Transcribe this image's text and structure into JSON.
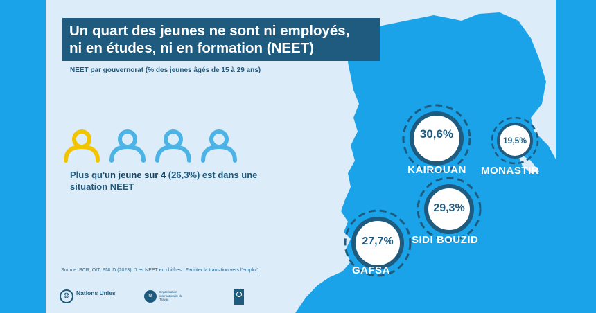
{
  "title": {
    "line1": "Un quart des jeunes ne sont ni employés,",
    "line2": "ni en études, ni en formation (NEET)"
  },
  "subtitle": "NEET par gouvernorat (% des jeunes âgés de 15 à 29 ans)",
  "stat": {
    "prefix": "Plus qu'",
    "emphasis": "un jeune sur 4",
    "suffix": " (26,3%) est dans une situation NEET",
    "people_total": 4,
    "people_highlighted": 1
  },
  "regions": [
    {
      "name": "KAIROUAN",
      "value": "30,6%"
    },
    {
      "name": "MONASTIR",
      "value": "19,5%"
    },
    {
      "name": "SIDI BOUZID",
      "value": "29,3%"
    },
    {
      "name": "GAFSA",
      "value": "27,7%"
    }
  ],
  "source": "Source: BCR, OIT, PNUD (2023), \"Les NEET en chiffres : Faciliter la transition vers l'emploi\".",
  "logos": {
    "un": "Nations Unies",
    "oit": "Organisation internationale du Travail"
  },
  "colors": {
    "outer_background": "#1aa3e8",
    "panel_background": "#dcedf9",
    "map": "#1aa3e8",
    "title_box": "#1f5a7f",
    "highlight_person": "#f2c500",
    "other_person": "#4cb3e6",
    "circle_stroke": "#1f5a7f"
  }
}
